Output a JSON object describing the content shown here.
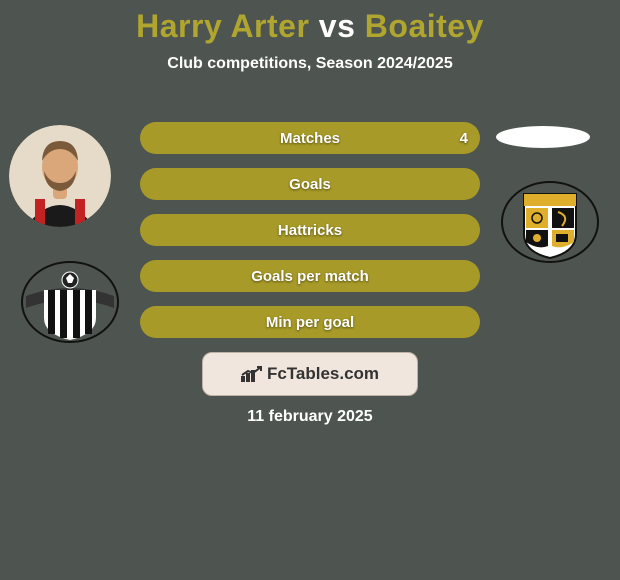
{
  "background_color": "#4e5550",
  "title": {
    "left": "Harry Arter",
    "middle": " vs ",
    "right": "Boaitey",
    "color_left": "#b0a52f",
    "color_middle": "#ffffff",
    "color_right": "#b0a52f",
    "fontsize": 32
  },
  "subtitle": {
    "text": "Club competitions, Season 2024/2025",
    "color": "#ffffff",
    "fontsize": 16
  },
  "bars": {
    "track_color": "#a79a28",
    "text_color": "#ffffff",
    "label_fontsize": 15,
    "items": [
      {
        "label": "Matches",
        "value_left": "4"
      },
      {
        "label": "Goals"
      },
      {
        "label": "Hattricks"
      },
      {
        "label": "Goals per match"
      },
      {
        "label": "Min per goal"
      }
    ]
  },
  "pill_right": {
    "bg_color": "#ffffff"
  },
  "player_left": {
    "photo_bg": "#e6dac8",
    "hair": "#7a5a3a",
    "skin": "#d9a77a",
    "jersey_main": "#1a1a1a",
    "jersey_stripe": "#c32222"
  },
  "club_left": {
    "shield_bg": "#ffffff",
    "shield_stripe": "#111111",
    "ribbon": "#333333",
    "ball": "#222222"
  },
  "club_right": {
    "shield_bg": "#ffffff",
    "shield_border": "#111111",
    "accent": "#dfae2a",
    "panel": "#111111"
  },
  "brand": {
    "box_bg": "#f1e6dd",
    "box_border": "#bfb3a6",
    "text": "FcTables.com",
    "text_color": "#333333",
    "icon_color": "#333333"
  },
  "date": {
    "text": "11 february 2025",
    "color": "#ffffff",
    "fontsize": 16
  }
}
